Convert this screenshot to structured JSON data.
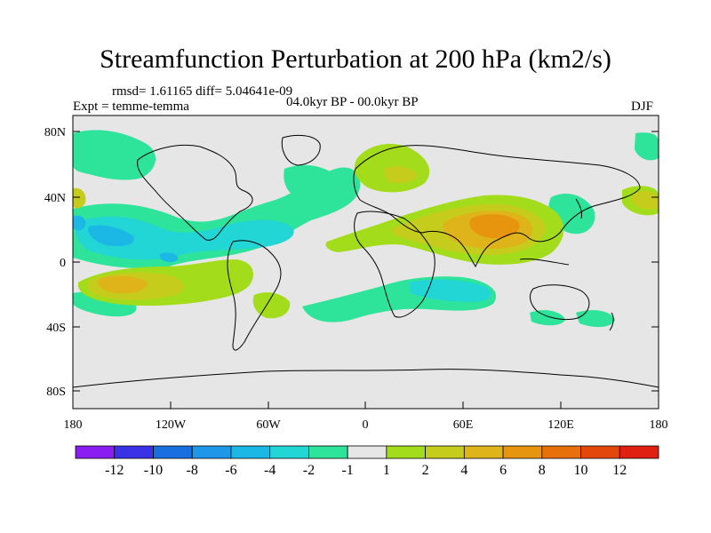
{
  "title": "Streamfunction Perturbation at 200 hPa (km2/s)",
  "stats_line": "rmsd= 1.61165 diff= 5.04641e-09",
  "experiment": "Expt = temme-temma",
  "period": "04.0kyr BP - 00.0kyr BP",
  "season": "DJF",
  "lat_labels": [
    "80N",
    "40N",
    "0",
    "40S",
    "80S"
  ],
  "lon_labels": [
    "180",
    "120W",
    "60W",
    "0",
    "60E",
    "120E",
    "180"
  ],
  "colorbar": {
    "labels": [
      "-12",
      "-10",
      "-8",
      "-6",
      "-4",
      "-2",
      "-1",
      "1",
      "2",
      "4",
      "6",
      "8",
      "10",
      "12"
    ],
    "colors": [
      "#8a1df0",
      "#3a32e6",
      "#1a6fe0",
      "#1f97e8",
      "#1bb8e6",
      "#22d6d6",
      "#2ee39a",
      "#e6e6e6",
      "#a3dc1a",
      "#c6cc1c",
      "#dfb41a",
      "#e7940f",
      "#e8700b",
      "#e4470c",
      "#e02010"
    ]
  }
}
